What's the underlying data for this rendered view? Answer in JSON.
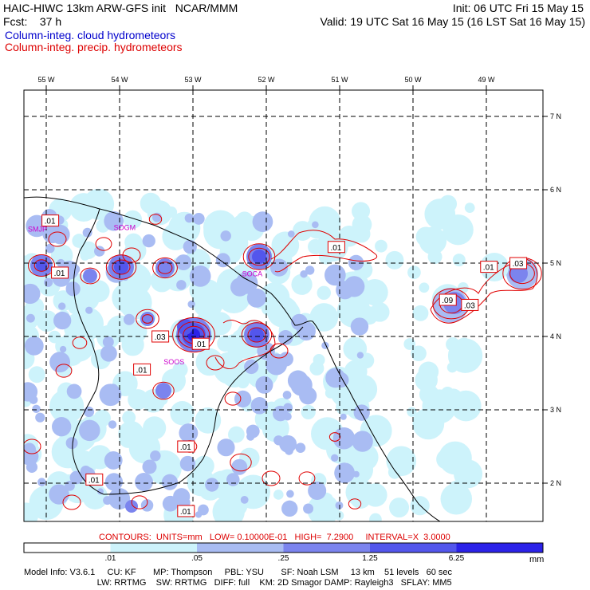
{
  "header": {
    "model": "HAIC-HIWC 13km ARW-GFS init   NCAR/MMM",
    "init": "Init: 06 UTC Fri 15 May 15",
    "fcst": "Fcst:    37 h",
    "valid": "Valid: 19 UTC Sat 16 May 15 (16 LST Sat 16 May 15)",
    "field1": "Column-integ. cloud hydrometeors",
    "field2": "Column-integ. precip. hydrometeors"
  },
  "axes": {
    "lon": [
      {
        "text": "55 W",
        "v": -55
      },
      {
        "text": "54 W",
        "v": -54
      },
      {
        "text": "53 W",
        "v": -53
      },
      {
        "text": "52 W",
        "v": -52
      },
      {
        "text": "51 W",
        "v": -51
      },
      {
        "text": "50 W",
        "v": -50
      },
      {
        "text": "49 W",
        "v": -49
      }
    ],
    "lat": [
      {
        "text": "7 N",
        "v": 7
      },
      {
        "text": "6 N",
        "v": 6
      },
      {
        "text": "5 N",
        "v": 5
      },
      {
        "text": "4 N",
        "v": 4
      },
      {
        "text": "3 N",
        "v": 3
      },
      {
        "text": "2 N",
        "v": 2
      }
    ]
  },
  "stations": [
    {
      "name": "SMJP",
      "lon": -55.25,
      "lat": 5.43
    },
    {
      "name": "SOGM",
      "lon": -54.08,
      "lat": 5.45
    },
    {
      "name": "SOCA",
      "lon": -52.33,
      "lat": 4.82
    },
    {
      "name": "SOOS",
      "lon": -53.4,
      "lat": 3.62
    }
  ],
  "contour_labels": [
    {
      "text": ".01",
      "lon": -54.95,
      "lat": 5.58
    },
    {
      "text": ".01",
      "lon": -54.82,
      "lat": 4.87
    },
    {
      "text": ".01",
      "lon": -51.05,
      "lat": 5.22
    },
    {
      "text": ".03",
      "lon": -53.45,
      "lat": 4.0
    },
    {
      "text": ".01",
      "lon": -52.9,
      "lat": 3.9
    },
    {
      "text": ".01",
      "lon": -53.7,
      "lat": 3.55
    },
    {
      "text": ".01",
      "lon": -53.1,
      "lat": 2.5
    },
    {
      "text": ".01",
      "lon": -54.35,
      "lat": 2.05
    },
    {
      "text": ".01",
      "lon": -53.1,
      "lat": 1.62
    },
    {
      "text": ".09",
      "lon": -49.53,
      "lat": 4.5
    },
    {
      "text": ".03",
      "lon": -49.23,
      "lat": 4.43
    },
    {
      "text": ".01",
      "lon": -48.97,
      "lat": 4.95
    },
    {
      "text": ".03",
      "lon": -48.57,
      "lat": 5.0
    }
  ],
  "contour_info": "CONTOURS:  UNITS=mm   LOW= 0.10000E-01   HIGH=  7.2900     INTERVAL=X  3.0000",
  "colorbar": {
    "ticks": [
      ".01",
      ".05",
      ".25",
      "1.25",
      "6.25"
    ],
    "unit": "mm",
    "colors": [
      "#ffffff",
      "#cdf3fb",
      "#a9bcf3",
      "#7b84ee",
      "#5356ec",
      "#2b22e8"
    ]
  },
  "model_info": {
    "line1": "Model Info: V3.6.1     CU: KF       MP: Thompson     PBL: YSU       SF: Noah LSM     13 km    51 levels   60 sec",
    "line2": "                              LW: RRTMG    SW: RRTMG   DIFF: full    KM: 2D Smagor DAMP: Rayleigh3   SFLAY: MM5"
  }
}
